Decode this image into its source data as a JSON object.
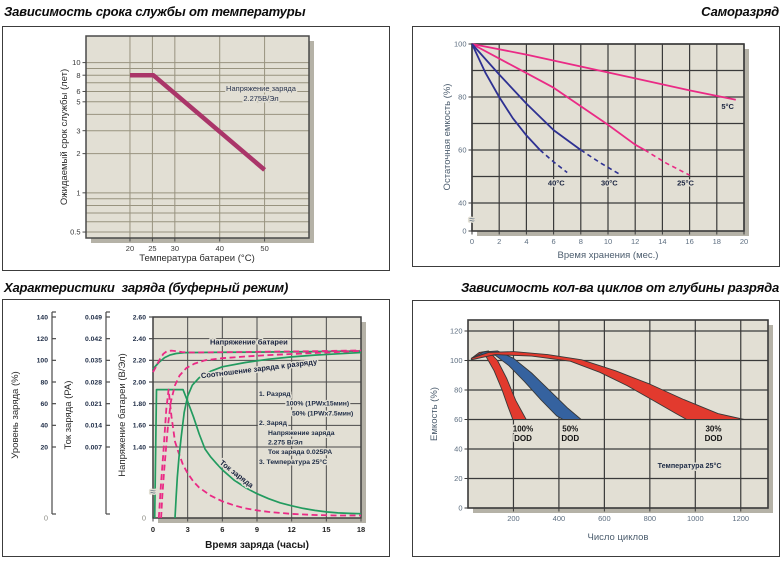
{
  "page": {
    "background": "#ffffff"
  },
  "colors": {
    "plot_bg": "#e2dfd4",
    "shadow": "#b5b2a7",
    "grid_soft": "#98937f",
    "grid_dark": "#3a3a3a",
    "title_text": "#0b0b0b",
    "accent_pink": "#ea2a85",
    "accent_navy": "#2e3192",
    "accent_green": "#229b5f",
    "accent_crimson": "#aa3569",
    "accent_red": "#e23a2e",
    "accent_blue": "#35629f"
  },
  "chart_data": [
    {
      "id": "life-vs-temperature",
      "type": "line",
      "title": "Зависимость срока службы от температуры",
      "xlabel": "Температура батареи (°C)",
      "ylabel": "Ожидаемый срок службы (лет)",
      "x_ticks": [
        20,
        25,
        30,
        40,
        50
      ],
      "xlim": [
        10.2,
        59.9
      ],
      "y_scale": "log",
      "ylim": [
        0.45,
        16
      ],
      "y_grid": [
        10,
        9,
        8,
        7,
        6,
        5,
        4,
        3,
        2,
        1,
        0.9,
        0.8,
        0.7,
        0.6,
        0.5
      ],
      "y_tick_labels": [
        "10",
        "8",
        "6",
        "5",
        "3",
        "2",
        "1",
        "0.5"
      ],
      "annotation_lines": [
        "Напряжение заряда",
        "2.275В/Эл"
      ],
      "series": [
        {
          "name": "срок службы",
          "color": "#aa3569",
          "points": [
            [
              20,
              8
            ],
            [
              25.2,
              8
            ],
            [
              50,
              1.5
            ]
          ]
        }
      ]
    },
    {
      "id": "self-discharge",
      "type": "line",
      "title": "Саморазряд",
      "xlabel": "Время хранения (мес.)",
      "ylabel": "Остаточная емкость (%)",
      "x_ticks": [
        0,
        2,
        4,
        6,
        8,
        10,
        12,
        14,
        16,
        18,
        20
      ],
      "y_grid": [
        100,
        90,
        80,
        70,
        60,
        50,
        40
      ],
      "y_tick_labels": [
        "100",
        "80",
        "60",
        "40"
      ],
      "zero_label": "0",
      "break_symbol": "≈",
      "series": [
        {
          "name": "5°C",
          "label": "5°C",
          "color": "#ea2a85",
          "solid": [
            [
              0,
              100
            ],
            [
              4,
              96
            ],
            [
              8,
              91.5
            ],
            [
              12,
              87
            ],
            [
              16,
              82.5
            ],
            [
              19.4,
              79
            ]
          ],
          "dashed": [],
          "label_xy": [
            18.8,
            76.5
          ]
        },
        {
          "name": "25°C",
          "label": "25°C",
          "color": "#ea2a85",
          "solid": [
            [
              0,
              100
            ],
            [
              2,
              94.5
            ],
            [
              4,
              89
            ],
            [
              6,
              83.5
            ],
            [
              8,
              76.5
            ],
            [
              10,
              69.5
            ],
            [
              12,
              62
            ],
            [
              12.7,
              60
            ]
          ],
          "dashed": [
            [
              12.7,
              60
            ],
            [
              14.3,
              55
            ],
            [
              16,
              50.5
            ]
          ],
          "label_xy": [
            15.7,
            47.5
          ]
        },
        {
          "name": "30°C",
          "label": "30°C",
          "color": "#2e3192",
          "solid": [
            [
              0,
              100
            ],
            [
              2,
              88.5
            ],
            [
              4,
              77.5
            ],
            [
              6,
              67.5
            ],
            [
              8,
              60
            ]
          ],
          "dashed": [
            [
              8,
              60
            ],
            [
              9.4,
              55.3
            ],
            [
              10.8,
              51
            ]
          ],
          "label_xy": [
            10.1,
            47.5
          ]
        },
        {
          "name": "40°C",
          "label": "40°C",
          "color": "#2e3192",
          "solid": [
            [
              0,
              100
            ],
            [
              1,
              89
            ],
            [
              2,
              80
            ],
            [
              3,
              72
            ],
            [
              4,
              65.5
            ],
            [
              5,
              60
            ]
          ],
          "dashed": [
            [
              5,
              60
            ],
            [
              6,
              55.5
            ],
            [
              7,
              51.5
            ]
          ],
          "label_xy": [
            6.2,
            47.5
          ]
        }
      ]
    },
    {
      "id": "charge-characteristics-buffer-mode",
      "type": "line",
      "title": "Характеристики  заряда (буферный режим)",
      "xlabel": "Время заряда (часы)",
      "x_ticks": [
        0,
        3,
        6,
        9,
        12,
        15,
        18
      ],
      "left_axes": [
        {
          "title": "Уровень заряда (%)",
          "tick_labels": [
            "140",
            "120",
            "100",
            "80",
            "60",
            "40",
            "20"
          ],
          "zero_label": "0"
        },
        {
          "title": "Ток заряда (PA)",
          "tick_labels": [
            "0.049",
            "0.042",
            "0.035",
            "0.028",
            "0.021",
            "0.014",
            "0.007"
          ]
        },
        {
          "title": "Напряжение батареи (В/Эл)",
          "tick_labels": [
            "2.60",
            "2.40",
            "2.20",
            "2.00",
            "1.80",
            "1.60",
            "1.40"
          ],
          "zero_label": "0",
          "break_symbol": "≈"
        }
      ],
      "note_lines": [
        {
          "text": "1. Разряд",
          "indent": 0
        },
        {
          "text": "100% (1PWx15мин)",
          "indent": 27
        },
        {
          "text": "50% (1PWx7.5мин)",
          "indent": 33
        },
        {
          "text": "2. Заряд",
          "indent": 0
        },
        {
          "text": "Напряжение заряда",
          "indent": 9
        },
        {
          "text": "2.275 В/Эл",
          "indent": 9
        },
        {
          "text": "Ток заряда 0.025PA",
          "indent": 9
        },
        {
          "text": "3. Температура 25°C",
          "indent": 0
        }
      ],
      "curve_labels": [
        {
          "text": "Напряжение батареи",
          "t": 8.3,
          "v": 2.345,
          "rotate": 0
        },
        {
          "text": "Соотношение заряда к разряду",
          "t": 9.2,
          "v": 2.1,
          "rotate": -7
        },
        {
          "text": "Ток заряда",
          "t": 7.1,
          "v": 0.83,
          "rotate": 38
        }
      ],
      "series": [
        {
          "name": "напряжение батареи — разряд 50%",
          "color": "#229b5f",
          "dash": null,
          "points": [
            [
              0,
              2.12
            ],
            [
              0.5,
              2.18
            ],
            [
              1,
              2.225
            ],
            [
              1.5,
              2.25
            ],
            [
              2,
              2.263
            ],
            [
              2.7,
              2.271
            ],
            [
              5,
              2.273
            ],
            [
              10,
              2.277
            ],
            [
              14,
              2.281
            ],
            [
              18,
              2.286
            ]
          ]
        },
        {
          "name": "напряжение батареи — разряд 100%",
          "color": "#ea2a85",
          "dash": "6 3.5",
          "points": [
            [
              0,
              2.09
            ],
            [
              0.3,
              2.15
            ],
            [
              0.6,
              2.21
            ],
            [
              0.9,
              2.26
            ],
            [
              1.2,
              2.284
            ],
            [
              1.6,
              2.29
            ],
            [
              2,
              2.284
            ],
            [
              2.5,
              2.276
            ],
            [
              3.5,
              2.272
            ],
            [
              8,
              2.277
            ],
            [
              13,
              2.283
            ],
            [
              18,
              2.291
            ]
          ]
        },
        {
          "name": "ток заряда — разряд 50%",
          "color": "#229b5f",
          "dash": null,
          "points": [
            [
              0.15,
              0
            ],
            [
              0.3,
              1.93
            ],
            [
              2.6,
              1.93
            ],
            [
              3,
              1.82
            ],
            [
              3.5,
              1.68
            ],
            [
              4,
              1.52
            ],
            [
              4.5,
              1.36
            ],
            [
              5,
              1.2
            ],
            [
              5.5,
              1.07
            ],
            [
              6,
              0.95
            ],
            [
              7,
              0.75
            ],
            [
              8,
              0.6
            ],
            [
              9,
              0.48
            ],
            [
              10,
              0.38
            ],
            [
              11,
              0.3
            ],
            [
              12,
              0.24
            ],
            [
              13,
              0.19
            ],
            [
              14,
              0.15
            ],
            [
              15,
              0.12
            ],
            [
              16,
              0.1
            ],
            [
              17,
              0.09
            ],
            [
              18,
              0.085
            ]
          ]
        },
        {
          "name": "ток заряда — разряд 100%",
          "color": "#ea2a85",
          "dash": "6 3.5",
          "points": [
            [
              0.5,
              0
            ],
            [
              0.7,
              0.7
            ],
            [
              0.9,
              1.3
            ],
            [
              1.15,
              1.75
            ],
            [
              1.35,
              1.93
            ],
            [
              1.6,
              1.68
            ],
            [
              1.9,
              1.45
            ],
            [
              2.2,
              1.3
            ],
            [
              2.6,
              1.05
            ],
            [
              3,
              0.88
            ],
            [
              3.5,
              0.72
            ],
            [
              4,
              0.6
            ],
            [
              5,
              0.44
            ],
            [
              6,
              0.33
            ],
            [
              7,
              0.25
            ],
            [
              8,
              0.19
            ],
            [
              9,
              0.15
            ],
            [
              10,
              0.12
            ],
            [
              12,
              0.08
            ],
            [
              14,
              0.06
            ],
            [
              16,
              0.05
            ],
            [
              18,
              0.05
            ]
          ]
        },
        {
          "name": "соотношение заряда к разряду — 50%",
          "color": "#229b5f",
          "dash": null,
          "points": [
            [
              1.9,
              0
            ],
            [
              2,
              0.4
            ],
            [
              2.1,
              0.8
            ],
            [
              2.25,
              1.2
            ],
            [
              2.45,
              1.5
            ],
            [
              2.7,
              1.72
            ],
            [
              3,
              1.87
            ],
            [
              3.4,
              1.97
            ],
            [
              4,
              2.04
            ],
            [
              5,
              2.1
            ],
            [
              6,
              2.14
            ],
            [
              8,
              2.18
            ],
            [
              10,
              2.21
            ],
            [
              12,
              2.232
            ],
            [
              14,
              2.248
            ],
            [
              16,
              2.26
            ],
            [
              18,
              2.272
            ]
          ]
        },
        {
          "name": "соотношение заряда к разряду — 100%",
          "color": "#ea2a85",
          "dash": "6 3.5",
          "points": [
            [
              0.7,
              0
            ],
            [
              0.8,
              0.4
            ],
            [
              0.95,
              0.9
            ],
            [
              1.1,
              1.3
            ],
            [
              1.3,
              1.6
            ],
            [
              1.55,
              1.82
            ],
            [
              1.9,
              1.97
            ],
            [
              2.3,
              2.06
            ],
            [
              2.9,
              2.13
            ],
            [
              3.6,
              2.17
            ],
            [
              4.5,
              2.2
            ],
            [
              6,
              2.22
            ],
            [
              8,
              2.235
            ],
            [
              10,
              2.248
            ],
            [
              12,
              2.258
            ],
            [
              14,
              2.268
            ],
            [
              16,
              2.277
            ],
            [
              18,
              2.287
            ]
          ]
        }
      ]
    },
    {
      "id": "cycles-vs-depth-of-discharge",
      "type": "area",
      "title": "Зависимость кол-ва циклов от глубины разряда",
      "xlabel": "Число циклов",
      "ylabel": "Емкость (%)",
      "x_ticks": [
        200,
        400,
        600,
        800,
        1000,
        1200
      ],
      "y_ticks": [
        120,
        100,
        80,
        60,
        40,
        20,
        0
      ],
      "xlim": [
        0,
        1320
      ],
      "ylim": [
        0,
        127
      ],
      "note": "Температура 25°C",
      "note_xy": [
        975,
        27
      ],
      "bands": [
        {
          "name": "100% DOD",
          "color": "#e23a2e",
          "label_lines": [
            "100%",
            "DOD"
          ],
          "label_xy": [
            242,
            52
          ],
          "upper": [
            [
              15,
              101.5
            ],
            [
              50,
              105.5
            ],
            [
              90,
              106.5
            ],
            [
              130,
              100
            ],
            [
              170,
              88
            ],
            [
              210,
              73
            ],
            [
              256,
              60
            ]
          ],
          "lower": [
            [
              15,
              100.5
            ],
            [
              45,
              103.5
            ],
            [
              80,
              102.5
            ],
            [
              115,
              93
            ],
            [
              150,
              80
            ],
            [
              175,
              69
            ],
            [
              197,
              60
            ]
          ]
        },
        {
          "name": "50% DOD",
          "color": "#35629f",
          "label_lines": [
            "50%",
            "DOD"
          ],
          "label_xy": [
            450,
            52
          ],
          "upper": [
            [
              15,
              101.5
            ],
            [
              70,
              105.8
            ],
            [
              130,
              106.5
            ],
            [
              200,
              101.5
            ],
            [
              280,
              91.5
            ],
            [
              360,
              79.5
            ],
            [
              440,
              67.5
            ],
            [
              498,
              60
            ]
          ],
          "lower": [
            [
              15,
              100.5
            ],
            [
              60,
              104
            ],
            [
              120,
              103.5
            ],
            [
              180,
              96.5
            ],
            [
              250,
              85.5
            ],
            [
              320,
              73.5
            ],
            [
              390,
              62.5
            ],
            [
              418,
              60
            ]
          ]
        },
        {
          "name": "30% DOD",
          "color": "#e23a2e",
          "label_lines": [
            "30%",
            "DOD"
          ],
          "label_xy": [
            1080,
            52
          ],
          "upper": [
            [
              15,
              101.5
            ],
            [
              90,
              105.5
            ],
            [
              200,
              106
            ],
            [
              350,
              104
            ],
            [
              500,
              100.5
            ],
            [
              650,
              93
            ],
            [
              800,
              84
            ],
            [
              950,
              73.5
            ],
            [
              1100,
              64
            ],
            [
              1215,
              60
            ]
          ],
          "lower": [
            [
              15,
              100.5
            ],
            [
              120,
              104
            ],
            [
              280,
              103
            ],
            [
              450,
              99.5
            ],
            [
              580,
              92
            ],
            [
              700,
              83
            ],
            [
              820,
              72.5
            ],
            [
              910,
              64.5
            ],
            [
              962,
              60
            ]
          ]
        }
      ]
    }
  ]
}
